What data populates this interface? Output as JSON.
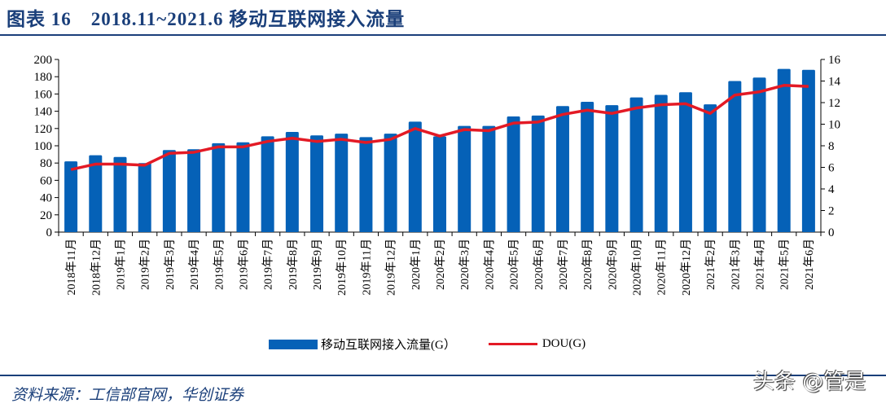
{
  "title": "图表 16　2018.11~2021.6 移动互联网接入流量",
  "source": "资料来源：工信部官网，华创证券",
  "watermark": "头条 @管是",
  "chart_data": {
    "type": "bar+line",
    "categories": [
      "2018年11月",
      "2018年12月",
      "2019年1月",
      "2019年2月",
      "2019年3月",
      "2019年4月",
      "2019年5月",
      "2019年6月",
      "2019年7月",
      "2019年8月",
      "2019年9月",
      "2019年10月",
      "2019年11月",
      "2019年12月",
      "2020年1月",
      "2020年2月",
      "2020年3月",
      "2020年4月",
      "2020年5月",
      "2020年6月",
      "2020年7月",
      "2020年8月",
      "2020年9月",
      "2020年10月",
      "2020年11月",
      "2020年12月",
      "2021年2月",
      "2021年3月",
      "2021年4月",
      "2021年5月",
      "2021年6月"
    ],
    "series": [
      {
        "name": "移动互联网接入流量(G）",
        "type": "bar",
        "axis": "left",
        "color": "#0561b7",
        "values": [
          82,
          89,
          87,
          80,
          95,
          96,
          103,
          104,
          111,
          116,
          112,
          114,
          110,
          114,
          128,
          111,
          123,
          123,
          134,
          135,
          146,
          151,
          147,
          156,
          159,
          162,
          148,
          175,
          179,
          189,
          188
        ]
      },
      {
        "name": "DOU(G)",
        "type": "line",
        "axis": "right",
        "color": "#e31a25",
        "values": [
          5.8,
          6.3,
          6.3,
          6.2,
          7.3,
          7.4,
          7.9,
          7.9,
          8.4,
          8.7,
          8.4,
          8.6,
          8.3,
          8.6,
          9.6,
          8.9,
          9.5,
          9.4,
          10.1,
          10.2,
          10.9,
          11.3,
          11.0,
          11.5,
          11.8,
          11.9,
          11.0,
          12.7,
          13.0,
          13.6,
          13.5
        ]
      }
    ],
    "y_left": {
      "range": [
        0,
        200
      ],
      "ticks": [
        0,
        20,
        40,
        60,
        80,
        100,
        120,
        140,
        160,
        180,
        200
      ]
    },
    "y_right": {
      "range": [
        0,
        16
      ],
      "ticks": [
        0,
        2,
        4,
        6,
        8,
        10,
        12,
        14,
        16
      ]
    },
    "grid": false,
    "legend": "bottom"
  }
}
